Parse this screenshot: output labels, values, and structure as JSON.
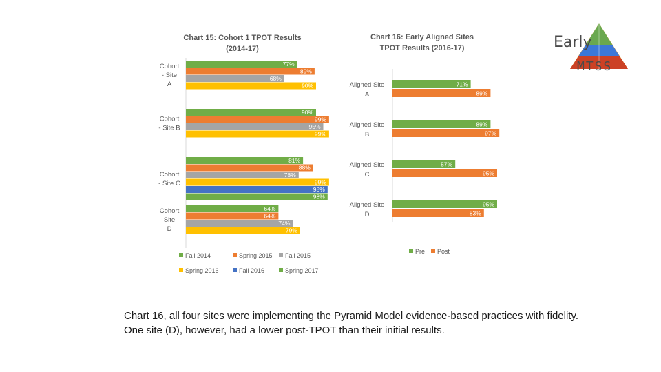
{
  "chart_data": [
    {
      "type": "bar",
      "orientation": "horizontal",
      "title_lines": [
        "Chart 15: Cohort 1 TPOT Results",
        "(2014-17)"
      ],
      "categories": [
        [
          "Cohort",
          "- Site",
          "A"
        ],
        [
          "Cohort",
          "- Site B"
        ],
        [
          "Cohort",
          "- Site C"
        ],
        [
          "Cohort",
          "Site",
          "D"
        ]
      ],
      "xlim": [
        0,
        100
      ],
      "series": [
        {
          "name": "Fall 2014",
          "color": "#70ad47",
          "values": [
            77,
            90,
            81,
            64
          ]
        },
        {
          "name": "Spring 2015",
          "color": "#ed7d31",
          "values": [
            89,
            99,
            88,
            64
          ]
        },
        {
          "name": "Fall 2015",
          "color": "#a5a5a5",
          "values": [
            68,
            95,
            78,
            74
          ]
        },
        {
          "name": "Spring 2016",
          "color": "#ffc000",
          "values": [
            90,
            99,
            99,
            79
          ]
        },
        {
          "name": "Fall 2016",
          "color": "#4472c4",
          "values": [
            null,
            null,
            98,
            null
          ]
        },
        {
          "name": "Spring 2017",
          "color": "#70ad47",
          "values": [
            null,
            null,
            98,
            null
          ]
        }
      ],
      "data_labels": [
        [
          "77%",
          "89%",
          "68%",
          "90%"
        ],
        [
          "90%",
          "99%",
          "95%",
          "99%"
        ],
        [
          "81%",
          "88%",
          "78%",
          "99%",
          "98%",
          "98%"
        ],
        [
          "64%",
          "64%",
          "74%",
          "79%"
        ]
      ],
      "legend_rows": [
        [
          "Fall 2014",
          "Spring 2015",
          "Fall 2015"
        ],
        [
          "Spring 2016",
          "Fall 2016",
          "Spring 2017"
        ]
      ]
    },
    {
      "type": "bar",
      "orientation": "horizontal",
      "title_lines": [
        "Chart 16: Early Aligned Sites",
        "TPOT Results (2016-17)"
      ],
      "categories": [
        [
          "Aligned Site",
          "A"
        ],
        [
          "Aligned Site",
          "B"
        ],
        [
          "Aligned Site",
          "C"
        ],
        [
          "Aligned Site",
          "D"
        ]
      ],
      "xlim": [
        0,
        100
      ],
      "series": [
        {
          "name": "Pre",
          "color": "#70ad47",
          "values": [
            71,
            89,
            57,
            95
          ]
        },
        {
          "name": "Post",
          "color": "#ed7d31",
          "values": [
            89,
            97,
            95,
            83
          ]
        }
      ],
      "data_labels": [
        [
          "71%",
          "89%"
        ],
        [
          "89%",
          "97%"
        ],
        [
          "57%",
          "95%"
        ],
        [
          "95%",
          "83%"
        ]
      ]
    }
  ],
  "caption": "Chart 16, all four sites were implementing the Pyramid Model evidence-based practices with fidelity. One site (D), however, had a lower post-TPOT than their initial results.",
  "logo": {
    "word1": "Early",
    "word2": "MTSS"
  }
}
